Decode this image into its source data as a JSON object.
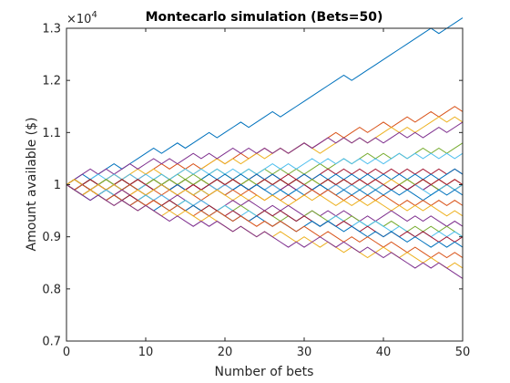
{
  "chart_data": {
    "type": "line",
    "title": "Montecarlo simulation (Bets=50)",
    "xlabel": "Number of bets",
    "ylabel": "Amount available ($)",
    "y_exponent_label": "×10",
    "y_exponent_power": "4",
    "xlim": [
      0,
      50
    ],
    "ylim": [
      0.7,
      1.3
    ],
    "y_scale_factor": 10000,
    "x_ticks": [
      0,
      10,
      20,
      30,
      40,
      50
    ],
    "x_tick_labels": [
      "0",
      "10",
      "20",
      "30",
      "40",
      "50"
    ],
    "y_ticks": [
      0.7,
      0.8,
      0.9,
      1.0,
      1.1,
      1.2,
      1.3
    ],
    "y_tick_labels": [
      "0.7",
      "0.8",
      "0.9",
      "1",
      "1.1",
      "1.2",
      "1.3"
    ],
    "grid": false,
    "start_value": 1,
    "step": 0.01,
    "num_steps": 50,
    "series_colors": [
      "#0072BD",
      "#D95319",
      "#EDB120",
      "#7E2F8E",
      "#77AC30",
      "#4DBEEE",
      "#A2142F"
    ],
    "series": [
      {
        "steps": "UUDUUUDUUUUDUUDUUUDUUUDUUUDUUUUUUUUDUUUUUUUUUUDUUU"
      },
      {
        "steps": "UDUDUUDUDUUUDUDUDUUDUUDUUDUDUUDUUUDUUDUUDUUDUUDUUD"
      },
      {
        "steps": "DUUDUUDUUDUDDUUDUUUDUDUUDUUDUUDDUUUDUDUUUDUDUUUDUD"
      },
      {
        "steps": "UUUDUDUUDUUDUDUUDUDUUDUDUDUDUUDUUDUDUDUDUUDUDUUDUU"
      },
      {
        "steps": "DUDUUDUDUDUUDUDUDUUDDUUDUDUDUDUUDUUDUUDUDUDUUDUDUU"
      },
      {
        "steps": "UDUUDUDUDUDUDUUDUDUDUDUDUUDUDUUDUDUDUDUDUUDUDUDUDU"
      },
      {
        "steps": "DUDUDUDUUDUDUDUDUDUDUDUUDUDUDUDUUDUDUDUDUDUDUDUDUD"
      },
      {
        "steps": "UDUDUDUDUDUDUDUDUUDUDUDUDUDDUUDUDUDUDUDUDUDUDUDUUD"
      },
      {
        "steps": "DUDUDUDDUUDUDUDUDUDUDUDUDUDUDUDUDUDUDUDUDUDUDUDUDU"
      },
      {
        "steps": "UDDUUDUDUDUDUDUDUDDUUDUDUDUDUDUDUDUDUDUDUDUDUDUDUD"
      },
      {
        "steps": "DUDUDDUUDUDUDUDUDUDUDUDUDUDUDUDDUUDUDUDUDUDUDUDUDU"
      },
      {
        "steps": "UDUDUDUDDUUDUDUDUDUDUDUDUDUDUDUDUDUDDUDUDUUDUDDUDU"
      },
      {
        "steps": "DDUUDUDUDUDUDDUDUUDUDUDUDUDDUUDUDUDUDUDUDUDUDDUUDU"
      },
      {
        "steps": "UDUDDUUDUDDUDUDUDUUDUDDUUDUDUDDUUDUDUDUDDUDUUDUDUD"
      },
      {
        "steps": "DUDDUUDUDDUUDUDDUDUDUUDUDDUDUDUUDDUDUDUDUDUDDUUDUD"
      },
      {
        "steps": "DDUDUDUUDDUDUDUDDUUDUDUDDUDUDUUDUDDUDUDUDDUDUDUDUD"
      },
      {
        "steps": "UDDUDUDDUDUUDDUDUDUDDUDUDUDDUUDUDDUDUDUDDUDUDUDDUD"
      },
      {
        "steps": "DUDDUDUDDUDUDUDDUDDUUDUDDUDUDDUDUDUDDUDUUDDUDUDDUD"
      },
      {
        "steps": "DDUDUDDUDUDDUDUDDUDUDUDDUDDUDUUDDUDUDDUDUDDUDUDUDD"
      },
      {
        "steps": "DUDDUDDUDUDUDDUDUDDUDDUDUDUDDUDDUUDDUDUDDUDDUDUDUD"
      },
      {
        "steps": "DDUDDUDUDDUDUDDUDUDDUDDUUDUDDUDDUDUDDUDDUDUDUDDUDU"
      },
      {
        "steps": "DDDUDUDDUDDUDUDUDDUDDUDUDDUDDUUDUDDUDDUDUDDUDDUDUD"
      },
      {
        "steps": "DUDDDUDDUDUDDUDDUDUDDUDDUDUDDUDDUDDUDUDDUDDUDDUDUD"
      },
      {
        "steps": "DDUDDDUDDUDDUDUDDUDDDUDDUDUDDUDDUDDUDDUUDDUDDUDDUD"
      },
      {
        "steps": "DDDUDDUDDUDDDUDDUDUDDUDDUDDDUDUUDDUDDUDDUDDDUDUDDD"
      }
    ]
  }
}
